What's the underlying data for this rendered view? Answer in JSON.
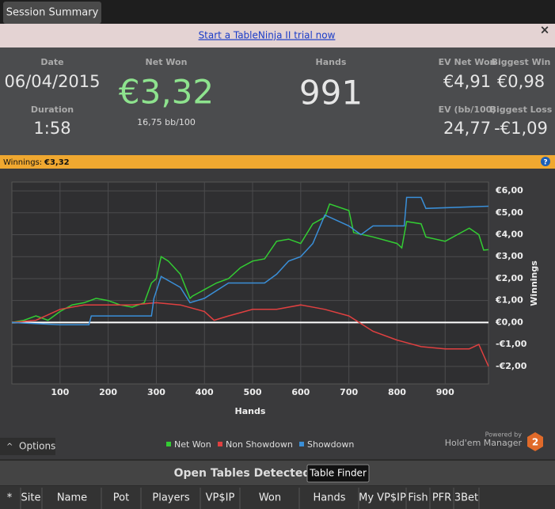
{
  "tab": "Session Summary",
  "banner": {
    "link": "Start a TableNinja II trial now",
    "close": "×"
  },
  "stats": {
    "date_label": "Date",
    "date": "06/04/2015",
    "duration_label": "Duration",
    "duration": "1:58",
    "net_won_label": "Net Won",
    "net_won": "€3,32",
    "bb100": "16,75 bb/100",
    "hands_label": "Hands",
    "hands": "991",
    "ev_net_won_label": "EV Net Won",
    "ev_net_won": "€4,91",
    "biggest_win_label": "Biggest Win",
    "biggest_win": "€0,98",
    "ev_bb100_label": "EV (bb/100)",
    "ev_bb100": "24,77",
    "biggest_loss_label": "Biggest Loss",
    "biggest_loss": "-€1,09"
  },
  "winnings_bar": {
    "label": "Winnings:",
    "value": "€3,32",
    "help": "?"
  },
  "chart_data": {
    "type": "line",
    "x_label": "Hands",
    "y_label": "Winnings",
    "xlim": [
      0,
      990
    ],
    "xticks": [
      100,
      200,
      300,
      400,
      500,
      600,
      700,
      800,
      900
    ],
    "ylim": [
      -2.8,
      6.4
    ],
    "yticks": [
      {
        "value": -2,
        "label": "-€2,00"
      },
      {
        "value": -1,
        "label": "-€1,00"
      },
      {
        "value": 0,
        "label": "€0,00"
      },
      {
        "value": 1,
        "label": "€1,00"
      },
      {
        "value": 2,
        "label": "€2,00"
      },
      {
        "value": 3,
        "label": "€3,00"
      },
      {
        "value": 4,
        "label": "€4,00"
      },
      {
        "value": 5,
        "label": "€5,00"
      },
      {
        "value": 6,
        "label": "€6,00"
      }
    ],
    "grid": true,
    "series": [
      {
        "name": "Net Won",
        "color": "#33cc33",
        "x": [
          0,
          25,
          50,
          75,
          100,
          125,
          150,
          175,
          200,
          225,
          250,
          275,
          290,
          300,
          310,
          325,
          350,
          370,
          375,
          400,
          425,
          450,
          475,
          500,
          525,
          550,
          575,
          600,
          625,
          650,
          660,
          700,
          710,
          750,
          800,
          810,
          820,
          850,
          860,
          900,
          925,
          950,
          970,
          980,
          990
        ],
        "values": [
          0,
          0.1,
          0.3,
          0.1,
          0.5,
          0.8,
          0.9,
          1.1,
          1.0,
          0.8,
          0.7,
          0.9,
          1.8,
          2.0,
          3.0,
          2.8,
          2.2,
          1.1,
          1.2,
          1.5,
          1.8,
          2.0,
          2.5,
          2.8,
          2.9,
          3.7,
          3.8,
          3.6,
          4.5,
          4.8,
          5.4,
          5.1,
          4.1,
          3.9,
          3.6,
          3.4,
          4.6,
          4.5,
          3.9,
          3.7,
          4.0,
          4.3,
          4.0,
          3.3,
          3.32
        ]
      },
      {
        "name": "Non Showdown",
        "color": "#e04040",
        "x": [
          0,
          50,
          100,
          150,
          200,
          250,
          300,
          350,
          400,
          420,
          450,
          500,
          550,
          600,
          650,
          700,
          750,
          800,
          850,
          900,
          950,
          970,
          980,
          990
        ],
        "values": [
          0,
          0.1,
          0.6,
          0.8,
          0.8,
          0.8,
          0.9,
          0.8,
          0.5,
          0.1,
          0.3,
          0.6,
          0.6,
          0.8,
          0.6,
          0.3,
          -0.4,
          -0.8,
          -1.1,
          -1.2,
          -1.2,
          -1.0,
          -1.5,
          -2.0
        ]
      },
      {
        "name": "Showdown",
        "color": "#3a8fd8",
        "x": [
          0,
          100,
          160,
          165,
          290,
          295,
          310,
          350,
          370,
          400,
          450,
          525,
          550,
          575,
          600,
          625,
          650,
          700,
          725,
          750,
          815,
          820,
          850,
          860,
          990
        ],
        "values": [
          0,
          -0.1,
          -0.1,
          0.3,
          0.3,
          1.1,
          2.1,
          1.6,
          0.9,
          1.1,
          1.8,
          1.8,
          2.2,
          2.8,
          3.0,
          3.6,
          4.9,
          4.4,
          4.0,
          4.4,
          4.4,
          5.7,
          5.7,
          5.2,
          5.3
        ]
      }
    ]
  },
  "options": "Options",
  "powered_by": {
    "small": "Powered by",
    "brand": "Hold'em Manager",
    "badge": "2"
  },
  "open_tables": {
    "title": "Open Tables Detected",
    "button": "Table Finder"
  },
  "table": {
    "columns": [
      "*",
      "Site",
      "Name",
      "Pot",
      "Players",
      "VP$IP",
      "Won",
      "Hands",
      "My VP$IP",
      "Fish",
      "PFR",
      "3Bet"
    ]
  }
}
